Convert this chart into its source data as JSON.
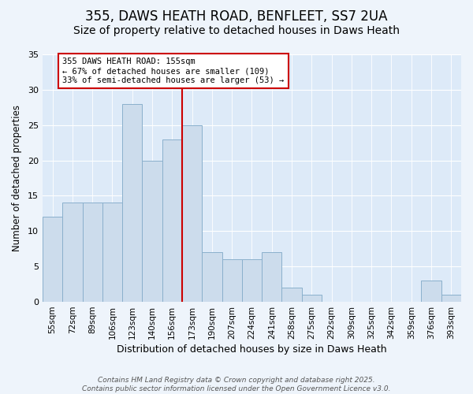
{
  "title1": "355, DAWS HEATH ROAD, BENFLEET, SS7 2UA",
  "title2": "Size of property relative to detached houses in Daws Heath",
  "xlabel": "Distribution of detached houses by size in Daws Heath",
  "ylabel": "Number of detached properties",
  "bar_labels": [
    "55sqm",
    "72sqm",
    "89sqm",
    "106sqm",
    "123sqm",
    "140sqm",
    "156sqm",
    "173sqm",
    "190sqm",
    "207sqm",
    "224sqm",
    "241sqm",
    "258sqm",
    "275sqm",
    "292sqm",
    "309sqm",
    "325sqm",
    "342sqm",
    "359sqm",
    "376sqm",
    "393sqm"
  ],
  "bar_values": [
    12,
    14,
    14,
    14,
    28,
    20,
    23,
    25,
    7,
    6,
    6,
    7,
    2,
    1,
    0,
    0,
    0,
    0,
    0,
    3,
    1
  ],
  "bar_color": "#ccdcec",
  "bar_edge_color": "#8ab0cc",
  "vline_pos": 6.5,
  "vline_color": "#cc0000",
  "annotation_text": "355 DAWS HEATH ROAD: 155sqm\n← 67% of detached houses are smaller (109)\n33% of semi-detached houses are larger (53) →",
  "annotation_box_facecolor": "#ffffff",
  "annotation_box_edgecolor": "#cc0000",
  "ylim": [
    0,
    35
  ],
  "yticks": [
    0,
    5,
    10,
    15,
    20,
    25,
    30,
    35
  ],
  "bg_color": "#ddeaf8",
  "fig_bg_color": "#eef4fb",
  "footer_text": "Contains HM Land Registry data © Crown copyright and database right 2025.\nContains public sector information licensed under the Open Government Licence v3.0.",
  "title1_fontsize": 12,
  "title2_fontsize": 10,
  "xlabel_fontsize": 9,
  "ylabel_fontsize": 8.5,
  "tick_fontsize": 7.5,
  "footer_fontsize": 6.5,
  "ann_fontsize": 7.5
}
